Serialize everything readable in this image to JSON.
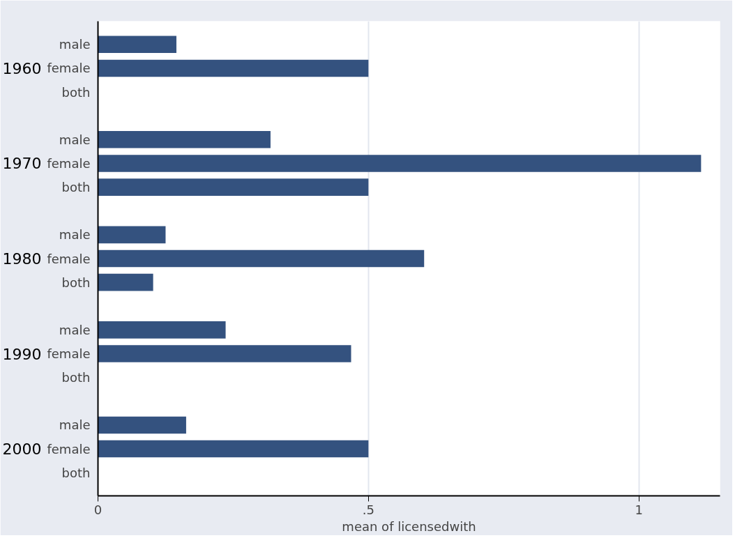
{
  "chart_data": {
    "type": "bar",
    "orientation": "horizontal",
    "xlabel": "mean of licensedwith",
    "categories": [
      "1960",
      "1970",
      "1980",
      "1990",
      "2000"
    ],
    "series": [
      {
        "name": "male",
        "color": "#34527f",
        "values": [
          0.145,
          0.319,
          0.125,
          0.236,
          0.163
        ]
      },
      {
        "name": "female",
        "color": "#34527f",
        "values": [
          0.5,
          1.115,
          0.603,
          0.468,
          0.5
        ]
      },
      {
        "name": "both",
        "color": "#34527f",
        "values": [
          null,
          0.5,
          0.102,
          null,
          null
        ]
      }
    ],
    "xlim": [
      0,
      1.15
    ],
    "xticks": [
      0,
      {
        "value": 0.5,
        "label": ".5"
      },
      1
    ],
    "grid": "x"
  }
}
